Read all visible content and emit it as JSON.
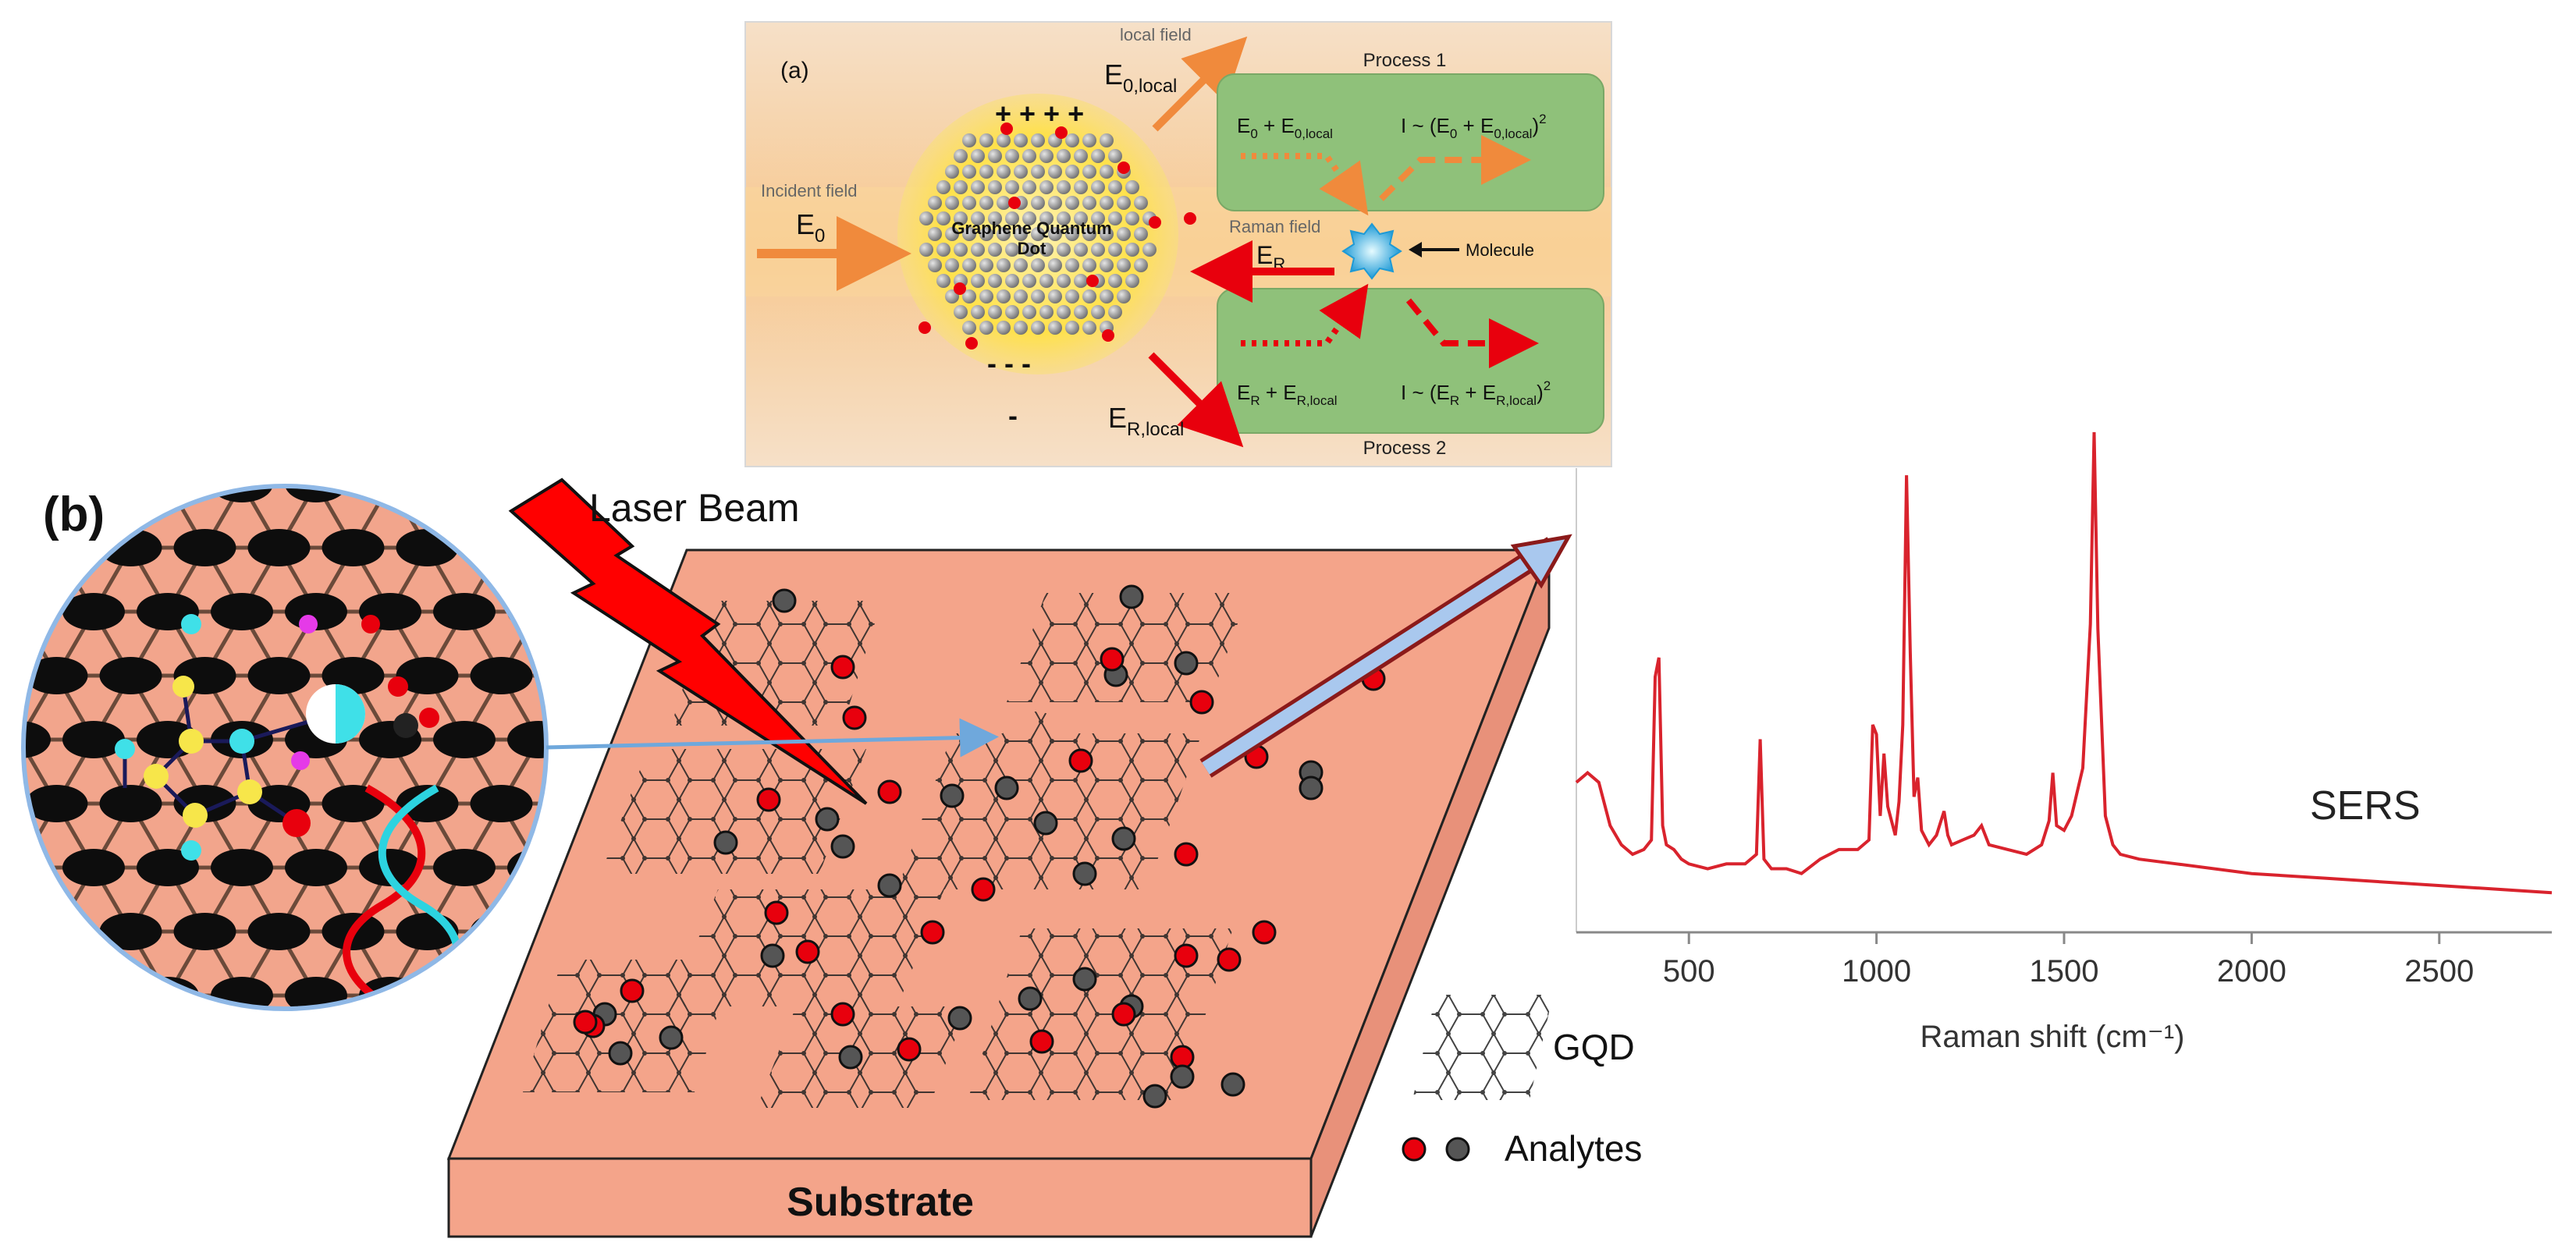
{
  "panel_a": {
    "label": "(a)",
    "local_field_caption": "local field",
    "local_field_symbol": "E",
    "local_field_sub": "0,local",
    "incident_field_caption": "Incident field",
    "incident_symbol": "E",
    "incident_sub": "0",
    "charges_top": "+ + + +",
    "charges_bottom": "- - -",
    "charge_minus": "-",
    "gqd_line1": "Graphene Quantum",
    "gqd_line2": "Dot",
    "raman_field_caption": "Raman field",
    "raman_symbol": "E",
    "raman_sub": "R",
    "molecule_label": "Molecule",
    "process1_title": "Process 1",
    "process2_title": "Process 2",
    "process1_sum": {
      "a": "E",
      "a_sub": "0",
      "plus": " + E",
      "b_sub": "0,local"
    },
    "process1_intensity": {
      "pre": "I ~ (E",
      "a_sub": "0",
      "mid": " + E",
      "b_sub": "0,local",
      "post": ")",
      "sup": "2"
    },
    "process2_sum": {
      "a": "E",
      "a_sub": "R",
      "plus": " + E",
      "b_sub": "R,local"
    },
    "process2_intensity": {
      "pre": "I ~ (E",
      "a_sub": "R",
      "mid": " + E",
      "b_sub": "R,local",
      "post": ")",
      "sup": "2"
    },
    "er_local_symbol": "E",
    "er_local_sub": "R,local"
  },
  "panel_b": {
    "label": "(b)",
    "laser_label": "Laser Beam",
    "substrate_label": "Substrate",
    "legend_gqd": "GQD",
    "legend_analytes": "Analytes",
    "spectrum_label": "SERS",
    "colors": {
      "substrate": "#F4A48A",
      "analyte_red": "#E8000D",
      "analyte_grey": "#555555",
      "laser": "#FF0000",
      "spectrum": "#D9232D"
    }
  },
  "chart_data": {
    "type": "line",
    "title": "",
    "xlabel": "Raman shift (cm⁻¹)",
    "ylabel": "",
    "xlim": [
      200,
      2800
    ],
    "ylim": [
      0,
      100
    ],
    "x_ticks": [
      500,
      1000,
      1500,
      2000,
      2500
    ],
    "grid": false,
    "series": [
      {
        "name": "SERS",
        "x": [
          200,
          230,
          260,
          290,
          320,
          350,
          380,
          400,
          410,
          420,
          430,
          440,
          460,
          480,
          500,
          550,
          600,
          650,
          680,
          690,
          700,
          720,
          760,
          800,
          850,
          900,
          950,
          980,
          990,
          1000,
          1010,
          1020,
          1030,
          1050,
          1060,
          1070,
          1080,
          1090,
          1100,
          1110,
          1120,
          1140,
          1160,
          1180,
          1190,
          1200,
          1230,
          1260,
          1280,
          1300,
          1350,
          1400,
          1440,
          1460,
          1470,
          1480,
          1500,
          1520,
          1550,
          1570,
          1580,
          1590,
          1610,
          1630,
          1650,
          1700,
          1800,
          2000,
          2200,
          2400,
          2600,
          2800
        ],
        "y": [
          28,
          30,
          28,
          19,
          15,
          13,
          14,
          16,
          50,
          54,
          19,
          15,
          14,
          12,
          11,
          10,
          11,
          11,
          13,
          37,
          12,
          10,
          10,
          9,
          12,
          14,
          14,
          16,
          40,
          38,
          21,
          34,
          23,
          17,
          24,
          40,
          92,
          55,
          25,
          29,
          18,
          15,
          17,
          22,
          17,
          15,
          16,
          17,
          19,
          15,
          14,
          13,
          15,
          20,
          30,
          19,
          18,
          21,
          31,
          61,
          101,
          60,
          21,
          15,
          13,
          12,
          11,
          9,
          8,
          7,
          6,
          5
        ]
      }
    ]
  }
}
